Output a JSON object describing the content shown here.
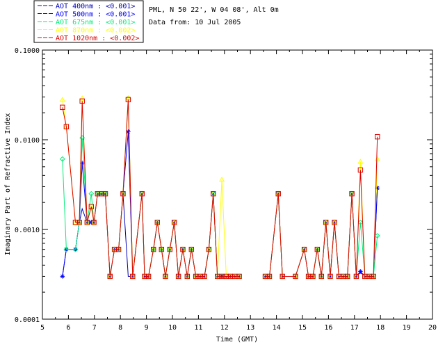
{
  "info": {
    "site": "PML, N 50 22', W 04 08', Alt 0m",
    "data_from": "Data from: 10 Jul 2005"
  },
  "chart_data": {
    "type": "line",
    "xlabel": "Time (GMT)",
    "ylabel": "Imaginary Part of Refractive Index",
    "xlim": [
      5,
      20
    ],
    "ylim": [
      0.0001,
      0.1
    ],
    "yscale": "log",
    "x_ticks": [
      "5",
      "6",
      "7",
      "8",
      "9",
      "10",
      "11",
      "12",
      "13",
      "14",
      "15",
      "16",
      "17",
      "18",
      "19",
      "20"
    ],
    "y_ticks": [
      "0.0001",
      "0.0010",
      "0.0100",
      "0.1000"
    ],
    "legend_position": "top-left, outside plot",
    "series": [
      {
        "name": "AOT  400nm : <0.001>",
        "color": "#0000bb",
        "marker": "none",
        "x": [
          5.77,
          5.92,
          6.27,
          6.42,
          6.53,
          6.72,
          6.88,
          6.98,
          7.12,
          7.27,
          7.42,
          7.6,
          7.77,
          7.93,
          8.1,
          8.3,
          8.47,
          8.83,
          8.93,
          9.08,
          9.27,
          9.42,
          9.58,
          9.73,
          9.9,
          10.07,
          10.23,
          10.4,
          10.57,
          10.73,
          10.9,
          11.07,
          11.23,
          11.4,
          11.57,
          11.73,
          11.9,
          12.07,
          12.23,
          12.4,
          12.57,
          13.57,
          13.73,
          14.07,
          14.23,
          14.73,
          15.07,
          15.23,
          15.4,
          15.57,
          15.73,
          15.9,
          16.07,
          16.23,
          16.4,
          16.57,
          16.73,
          16.9,
          17.07,
          17.23,
          17.4,
          17.57,
          17.73,
          17.88
        ],
        "y": [
          0.0003,
          0.0006,
          0.0006,
          0.0012,
          0.0017,
          0.0012,
          0.0012,
          0.0012,
          0.0025,
          0.0025,
          0.0025,
          0.0003,
          0.0006,
          0.0006,
          0.0025,
          0.0003,
          0.0003,
          0.0025,
          0.0003,
          0.0003,
          0.0006,
          0.0012,
          0.0006,
          0.0003,
          0.0006,
          0.0012,
          0.0003,
          0.0006,
          0.0003,
          0.0006,
          0.0003,
          0.0003,
          0.0003,
          0.0006,
          0.0025,
          0.0003,
          0.0003,
          0.0003,
          0.0003,
          0.0003,
          0.0003,
          0.0003,
          0.0003,
          0.0025,
          0.0003,
          0.0003,
          0.0006,
          0.0003,
          0.0003,
          0.0006,
          0.0003,
          0.0012,
          0.0003,
          0.0012,
          0.0003,
          0.0003,
          0.0003,
          0.0025,
          0.0003,
          0.00033,
          0.0003,
          0.0003,
          0.0003,
          0.0029
        ]
      },
      {
        "name": "AOT  500nm : <0.001>",
        "color": "#0000ff",
        "marker": "asterisk",
        "x": [
          5.77,
          5.92,
          6.27,
          6.42,
          6.53,
          6.72,
          6.88,
          6.98,
          7.12,
          7.27,
          7.42,
          7.6,
          7.77,
          7.93,
          8.1,
          8.3,
          8.47,
          8.83,
          8.93,
          9.08,
          9.27,
          9.42,
          9.58,
          9.73,
          9.9,
          10.07,
          10.23,
          10.4,
          10.57,
          10.73,
          10.9,
          11.07,
          11.23,
          11.4,
          11.57,
          11.73,
          11.9,
          12.07,
          12.23,
          12.4,
          12.57,
          13.57,
          13.73,
          14.07,
          14.23,
          14.73,
          15.07,
          15.23,
          15.4,
          15.57,
          15.73,
          15.9,
          16.07,
          16.23,
          16.4,
          16.57,
          16.73,
          16.9,
          17.07,
          17.23,
          17.4,
          17.57,
          17.73,
          17.88
        ],
        "y": [
          0.0003,
          0.0006,
          0.0006,
          0.0012,
          0.0055,
          0.0012,
          0.0012,
          0.0012,
          0.0025,
          0.0025,
          0.0025,
          0.0003,
          0.0006,
          0.0006,
          0.0025,
          0.0123,
          0.0003,
          0.0025,
          0.0003,
          0.0003,
          0.0006,
          0.0012,
          0.0006,
          0.0003,
          0.0006,
          0.0012,
          0.0003,
          0.0006,
          0.0003,
          0.0006,
          0.0003,
          0.0003,
          0.0003,
          0.0006,
          0.0025,
          0.0003,
          0.0003,
          0.0003,
          0.0003,
          0.0003,
          0.0003,
          0.0003,
          0.0003,
          0.0025,
          0.0003,
          0.0003,
          0.0006,
          0.0003,
          0.0003,
          0.0006,
          0.0003,
          0.0012,
          0.0003,
          0.0012,
          0.0003,
          0.0003,
          0.0003,
          0.0025,
          0.0003,
          0.00034,
          0.0003,
          0.0003,
          0.0003,
          0.0029
        ]
      },
      {
        "name": "AOT  675nm : <0.001>",
        "color": "#00ee77",
        "marker": "diamond",
        "x": [
          5.77,
          5.92,
          6.27,
          6.42,
          6.53,
          6.72,
          6.88,
          6.98,
          7.12,
          7.27,
          7.42,
          7.6,
          7.77,
          7.93,
          8.1,
          8.3,
          8.47,
          8.83,
          8.93,
          9.08,
          9.27,
          9.42,
          9.58,
          9.73,
          9.9,
          10.07,
          10.23,
          10.4,
          10.57,
          10.73,
          10.9,
          11.07,
          11.23,
          11.4,
          11.57,
          11.73,
          11.9,
          12.07,
          12.23,
          12.4,
          12.57,
          13.57,
          13.73,
          14.07,
          14.23,
          14.73,
          15.07,
          15.23,
          15.4,
          15.57,
          15.73,
          15.9,
          16.07,
          16.23,
          16.4,
          16.57,
          16.73,
          16.9,
          17.07,
          17.23,
          17.4,
          17.57,
          17.73,
          17.88
        ],
        "y": [
          0.0061,
          0.0006,
          0.0006,
          0.0012,
          0.0105,
          0.0012,
          0.0025,
          0.0012,
          0.0025,
          0.0025,
          0.0025,
          0.0003,
          0.0006,
          0.0006,
          0.0025,
          0.029,
          0.0003,
          0.0025,
          0.0003,
          0.0003,
          0.0006,
          0.0012,
          0.0006,
          0.0003,
          0.0006,
          0.0012,
          0.0003,
          0.0006,
          0.0003,
          0.0006,
          0.0003,
          0.0003,
          0.0003,
          0.0006,
          0.0025,
          0.0003,
          0.0003,
          0.0003,
          0.0003,
          0.0003,
          0.0003,
          0.0003,
          0.0003,
          0.0025,
          0.0003,
          0.0003,
          0.0006,
          0.0003,
          0.0003,
          0.0006,
          0.0003,
          0.0012,
          0.0003,
          0.0012,
          0.0003,
          0.0003,
          0.0003,
          0.0025,
          0.0003,
          0.0012,
          0.0003,
          0.0003,
          0.0003,
          0.00085
        ]
      },
      {
        "name": "AOT  870nm : <0.002>",
        "color": "#ffff00",
        "marker": "triangle",
        "x": [
          5.77,
          5.92,
          6.27,
          6.42,
          6.53,
          6.72,
          6.88,
          6.98,
          7.12,
          7.27,
          7.42,
          7.6,
          7.77,
          7.93,
          8.1,
          8.3,
          8.47,
          8.83,
          8.93,
          9.08,
          9.27,
          9.42,
          9.58,
          9.73,
          9.9,
          10.07,
          10.23,
          10.4,
          10.57,
          10.73,
          10.9,
          11.07,
          11.23,
          11.4,
          11.57,
          11.73,
          11.9,
          12.07,
          12.23,
          12.4,
          12.57,
          13.57,
          13.73,
          14.07,
          14.23,
          14.73,
          15.07,
          15.23,
          15.4,
          15.57,
          15.73,
          15.9,
          16.07,
          16.23,
          16.4,
          16.57,
          16.73,
          16.9,
          17.07,
          17.23,
          17.4,
          17.57,
          17.73,
          17.88
        ],
        "y": [
          0.028,
          0.014,
          0.0012,
          0.0012,
          0.029,
          0.0012,
          0.0018,
          0.0012,
          0.0025,
          0.0025,
          0.0025,
          0.0003,
          0.0006,
          0.0006,
          0.0025,
          0.029,
          0.0003,
          0.0025,
          0.0003,
          0.0003,
          0.0006,
          0.0012,
          0.0006,
          0.0003,
          0.0006,
          0.0012,
          0.0003,
          0.0006,
          0.0003,
          0.0006,
          0.0003,
          0.0003,
          0.0003,
          0.0006,
          0.0025,
          0.0003,
          0.0036,
          0.0003,
          0.0003,
          0.0003,
          0.0003,
          0.0003,
          0.0003,
          0.0025,
          0.0003,
          0.0003,
          0.0006,
          0.0003,
          0.0003,
          0.0006,
          0.0003,
          0.0012,
          0.0003,
          0.0012,
          0.0003,
          0.0003,
          0.0003,
          0.0025,
          0.0003,
          0.0057,
          0.0003,
          0.0003,
          0.0003,
          0.0061
        ]
      },
      {
        "name": "AOT 1020nm : <0.002>",
        "color": "#dd0000",
        "marker": "square",
        "x": [
          5.77,
          5.92,
          6.27,
          6.42,
          6.53,
          6.72,
          6.88,
          6.98,
          7.12,
          7.27,
          7.42,
          7.6,
          7.77,
          7.93,
          8.1,
          8.3,
          8.47,
          8.83,
          8.93,
          9.08,
          9.27,
          9.42,
          9.58,
          9.73,
          9.9,
          10.07,
          10.23,
          10.4,
          10.57,
          10.73,
          10.9,
          11.07,
          11.23,
          11.4,
          11.57,
          11.73,
          11.9,
          12.07,
          12.23,
          12.4,
          12.57,
          13.57,
          13.73,
          14.07,
          14.23,
          14.73,
          15.07,
          15.23,
          15.4,
          15.57,
          15.73,
          15.9,
          16.07,
          16.23,
          16.4,
          16.57,
          16.73,
          16.9,
          17.07,
          17.23,
          17.4,
          17.57,
          17.73,
          17.88
        ],
        "y": [
          0.023,
          0.014,
          0.0012,
          0.0012,
          0.027,
          0.0012,
          0.0018,
          0.0012,
          0.0025,
          0.0025,
          0.0025,
          0.0003,
          0.0006,
          0.0006,
          0.0025,
          0.028,
          0.0003,
          0.0025,
          0.0003,
          0.0003,
          0.0006,
          0.0012,
          0.0006,
          0.0003,
          0.0006,
          0.0012,
          0.0003,
          0.0006,
          0.0003,
          0.0006,
          0.0003,
          0.0003,
          0.0003,
          0.0006,
          0.0025,
          0.0003,
          0.0003,
          0.0003,
          0.0003,
          0.0003,
          0.0003,
          0.0003,
          0.0003,
          0.0025,
          0.0003,
          0.0003,
          0.0006,
          0.0003,
          0.0003,
          0.0006,
          0.0003,
          0.0012,
          0.0003,
          0.0012,
          0.0003,
          0.0003,
          0.0003,
          0.0025,
          0.0003,
          0.0046,
          0.0003,
          0.0003,
          0.0003,
          0.0108
        ]
      }
    ]
  }
}
